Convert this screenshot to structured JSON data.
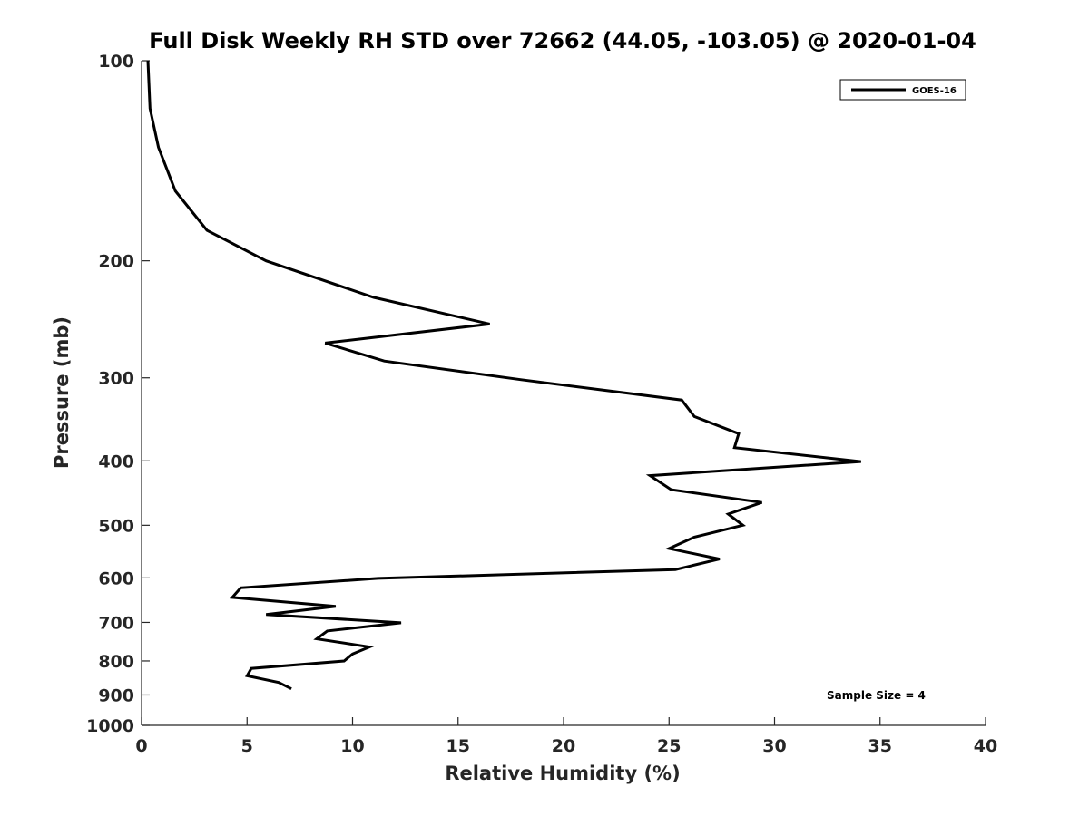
{
  "chart_data": {
    "type": "line",
    "title": "Full Disk Weekly RH STD over 72662 (44.05, -103.05) @ 2020-01-04",
    "xlabel": "Relative Humidity (%)",
    "ylabel": "Pressure (mb)",
    "xlim": [
      0,
      40
    ],
    "ylim": [
      100,
      1000
    ],
    "yscale": "log",
    "x_ticks": [
      0,
      5,
      10,
      15,
      20,
      25,
      30,
      35,
      40
    ],
    "x_tick_labels": [
      "0",
      "5",
      "10",
      "15",
      "20",
      "25",
      "30",
      "35",
      "40"
    ],
    "y_ticks": [
      100,
      200,
      300,
      400,
      500,
      600,
      700,
      800,
      900,
      1000
    ],
    "y_tick_labels": [
      "100",
      "200",
      "300",
      "400",
      "500",
      "600",
      "700",
      "800",
      "900",
      "1000"
    ],
    "grid": false,
    "legend_position": "top-right",
    "series": [
      {
        "name": "GOES-16",
        "color": "#000000",
        "points": [
          {
            "x": 0.3,
            "y": 100
          },
          {
            "x": 0.4,
            "y": 118
          },
          {
            "x": 0.8,
            "y": 135
          },
          {
            "x": 1.6,
            "y": 157
          },
          {
            "x": 3.1,
            "y": 180
          },
          {
            "x": 5.9,
            "y": 200
          },
          {
            "x": 11.0,
            "y": 227
          },
          {
            "x": 16.5,
            "y": 249
          },
          {
            "x": 8.7,
            "y": 266
          },
          {
            "x": 11.5,
            "y": 283
          },
          {
            "x": 18.0,
            "y": 302
          },
          {
            "x": 25.6,
            "y": 324
          },
          {
            "x": 26.2,
            "y": 343
          },
          {
            "x": 28.3,
            "y": 364
          },
          {
            "x": 28.1,
            "y": 382
          },
          {
            "x": 34.1,
            "y": 401
          },
          {
            "x": 24.1,
            "y": 421
          },
          {
            "x": 25.1,
            "y": 442
          },
          {
            "x": 29.4,
            "y": 462
          },
          {
            "x": 27.8,
            "y": 481
          },
          {
            "x": 28.5,
            "y": 500
          },
          {
            "x": 26.2,
            "y": 521
          },
          {
            "x": 25.0,
            "y": 542
          },
          {
            "x": 27.4,
            "y": 562
          },
          {
            "x": 25.3,
            "y": 583
          },
          {
            "x": 11.2,
            "y": 601
          },
          {
            "x": 4.7,
            "y": 621
          },
          {
            "x": 4.3,
            "y": 642
          },
          {
            "x": 9.2,
            "y": 662
          },
          {
            "x": 5.9,
            "y": 681
          },
          {
            "x": 12.3,
            "y": 701
          },
          {
            "x": 8.8,
            "y": 721
          },
          {
            "x": 8.3,
            "y": 741
          },
          {
            "x": 10.8,
            "y": 762
          },
          {
            "x": 10.0,
            "y": 781
          },
          {
            "x": 9.6,
            "y": 800
          },
          {
            "x": 5.2,
            "y": 821
          },
          {
            "x": 5.0,
            "y": 842
          },
          {
            "x": 6.5,
            "y": 862
          },
          {
            "x": 7.1,
            "y": 881
          }
        ]
      }
    ],
    "annotations": [
      {
        "text": "Sample Size = 4"
      }
    ]
  }
}
